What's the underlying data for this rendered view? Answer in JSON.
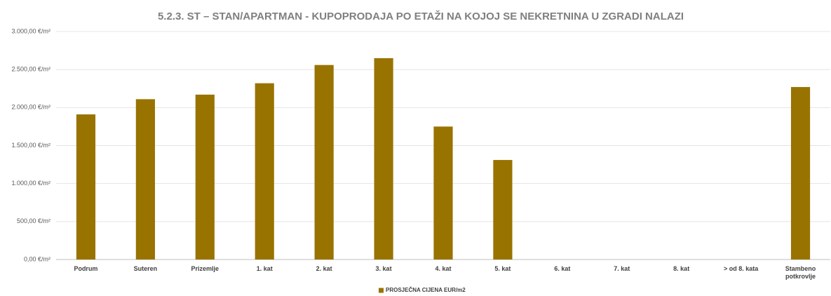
{
  "chart_data": {
    "type": "bar",
    "title": "5.2.3. ST – STAN/APARTMAN - KUPOPRODAJA PO ETAŽI NA KOJOJ SE NEKRETNINA U ZGRADI NALAZI",
    "categories": [
      "Podrum",
      "Suteren",
      "Prizemlje",
      "1. kat",
      "2. kat",
      "3. kat",
      "4. kat",
      "5. kat",
      "6. kat",
      "7. kat",
      "8. kat",
      "> od 8. kata",
      "Stambeno potkrovlje"
    ],
    "series": [
      {
        "name": "PROSJEČNA CIJENA EUR/m2",
        "color": "#997300",
        "values": [
          1910,
          2110,
          2170,
          2320,
          2560,
          2650,
          1750,
          1310,
          null,
          null,
          null,
          null,
          2270
        ]
      }
    ],
    "ylim": [
      0,
      3000
    ],
    "yticks": [
      {
        "value": 0,
        "label": "0,00 €/m²"
      },
      {
        "value": 500,
        "label": "500,00 €/m²"
      },
      {
        "value": 1000,
        "label": "1.000,00 €/m²"
      },
      {
        "value": 1500,
        "label": "1.500,00 €/m²"
      },
      {
        "value": 2000,
        "label": "2.000,00 €/m²"
      },
      {
        "value": 2500,
        "label": "2.500,00 €/m²"
      },
      {
        "value": 3000,
        "label": "3.000,00 €/m²"
      }
    ],
    "grid": true,
    "legend": "bottom"
  }
}
